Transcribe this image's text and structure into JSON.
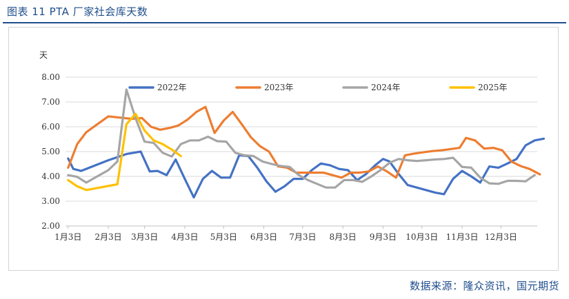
{
  "header": {
    "title": "图表 11 PTA 厂家社会库天数"
  },
  "footer": {
    "source": "数据来源：隆众资讯，国元期货"
  },
  "chart_data": {
    "type": "line",
    "title": "",
    "xlabel": "",
    "ylabel": "天",
    "ylim": [
      2.0,
      8.0
    ],
    "yticks": [
      "2.00",
      "3.00",
      "4.00",
      "5.00",
      "6.00",
      "7.00",
      "8.00"
    ],
    "xlim": [
      1,
      365
    ],
    "xticks": [
      {
        "label": "1月3日",
        "day": 3
      },
      {
        "label": "2月3日",
        "day": 34
      },
      {
        "label": "3月3日",
        "day": 62
      },
      {
        "label": "4月3日",
        "day": 93
      },
      {
        "label": "5月3日",
        "day": 123
      },
      {
        "label": "6月3日",
        "day": 154
      },
      {
        "label": "7月3日",
        "day": 184
      },
      {
        "label": "8月3日",
        "day": 215
      },
      {
        "label": "9月3日",
        "day": 246
      },
      {
        "label": "10月3日",
        "day": 276
      },
      {
        "label": "11月3日",
        "day": 307
      },
      {
        "label": "12月3日",
        "day": 337
      }
    ],
    "grid": true,
    "legend_position": "top",
    "series": [
      {
        "name": "2022年",
        "color": "#4472c4",
        "points": [
          [
            3,
            4.72
          ],
          [
            7,
            4.3
          ],
          [
            13,
            4.22
          ],
          [
            34,
            4.65
          ],
          [
            48,
            4.9
          ],
          [
            59,
            5.0
          ],
          [
            66,
            4.2
          ],
          [
            72,
            4.22
          ],
          [
            79,
            4.05
          ],
          [
            86,
            4.68
          ],
          [
            93,
            3.9
          ],
          [
            100,
            3.15
          ],
          [
            107,
            3.9
          ],
          [
            114,
            4.22
          ],
          [
            121,
            3.95
          ],
          [
            128,
            3.95
          ],
          [
            135,
            4.85
          ],
          [
            142,
            4.82
          ],
          [
            149,
            4.35
          ],
          [
            156,
            3.8
          ],
          [
            163,
            3.38
          ],
          [
            170,
            3.6
          ],
          [
            177,
            3.9
          ],
          [
            184,
            3.9
          ],
          [
            191,
            4.25
          ],
          [
            198,
            4.52
          ],
          [
            205,
            4.45
          ],
          [
            212,
            4.3
          ],
          [
            219,
            4.25
          ],
          [
            226,
            3.85
          ],
          [
            233,
            4.1
          ],
          [
            240,
            4.45
          ],
          [
            246,
            4.7
          ],
          [
            251,
            4.6
          ],
          [
            258,
            4.1
          ],
          [
            265,
            3.65
          ],
          [
            272,
            3.55
          ],
          [
            279,
            3.45
          ],
          [
            286,
            3.35
          ],
          [
            293,
            3.28
          ],
          [
            300,
            3.9
          ],
          [
            307,
            4.22
          ],
          [
            314,
            4.0
          ],
          [
            321,
            3.75
          ],
          [
            328,
            4.4
          ],
          [
            335,
            4.35
          ],
          [
            342,
            4.52
          ],
          [
            349,
            4.7
          ],
          [
            356,
            5.25
          ],
          [
            363,
            5.45
          ],
          [
            370,
            5.52
          ]
        ]
      },
      {
        "name": "2023年",
        "color": "#ed7d31",
        "points": [
          [
            3,
            4.35
          ],
          [
            10,
            5.3
          ],
          [
            17,
            5.78
          ],
          [
            34,
            6.42
          ],
          [
            41,
            6.38
          ],
          [
            52,
            6.32
          ],
          [
            60,
            6.35
          ],
          [
            67,
            6.0
          ],
          [
            74,
            5.88
          ],
          [
            81,
            5.95
          ],
          [
            88,
            6.05
          ],
          [
            95,
            6.28
          ],
          [
            102,
            6.6
          ],
          [
            109,
            6.8
          ],
          [
            116,
            5.75
          ],
          [
            123,
            6.25
          ],
          [
            130,
            6.6
          ],
          [
            137,
            6.1
          ],
          [
            144,
            5.58
          ],
          [
            151,
            5.22
          ],
          [
            158,
            5.0
          ],
          [
            165,
            4.4
          ],
          [
            172,
            4.35
          ],
          [
            179,
            4.15
          ],
          [
            186,
            4.15
          ],
          [
            193,
            4.15
          ],
          [
            200,
            4.15
          ],
          [
            207,
            4.05
          ],
          [
            214,
            3.95
          ],
          [
            221,
            4.15
          ],
          [
            228,
            4.15
          ],
          [
            235,
            4.2
          ],
          [
            242,
            4.4
          ],
          [
            249,
            4.2
          ],
          [
            256,
            3.95
          ],
          [
            263,
            4.85
          ],
          [
            270,
            4.92
          ],
          [
            277,
            4.97
          ],
          [
            284,
            5.02
          ],
          [
            291,
            5.05
          ],
          [
            298,
            5.1
          ],
          [
            305,
            5.15
          ],
          [
            310,
            5.55
          ],
          [
            317,
            5.45
          ],
          [
            324,
            5.12
          ],
          [
            331,
            5.15
          ],
          [
            338,
            5.05
          ],
          [
            345,
            4.6
          ],
          [
            352,
            4.42
          ],
          [
            359,
            4.3
          ],
          [
            367,
            4.08
          ]
        ]
      },
      {
        "name": "2024年",
        "color": "#a5a5a5",
        "points": [
          [
            3,
            4.05
          ],
          [
            10,
            3.98
          ],
          [
            17,
            3.75
          ],
          [
            34,
            4.25
          ],
          [
            41,
            4.6
          ],
          [
            48,
            7.5
          ],
          [
            55,
            6.35
          ],
          [
            62,
            5.4
          ],
          [
            69,
            5.35
          ],
          [
            76,
            4.95
          ],
          [
            83,
            4.8
          ],
          [
            90,
            5.3
          ],
          [
            97,
            5.45
          ],
          [
            104,
            5.45
          ],
          [
            111,
            5.6
          ],
          [
            118,
            5.42
          ],
          [
            125,
            5.4
          ],
          [
            132,
            4.95
          ],
          [
            139,
            4.85
          ],
          [
            146,
            4.82
          ],
          [
            153,
            4.6
          ],
          [
            160,
            4.5
          ],
          [
            167,
            4.42
          ],
          [
            174,
            4.38
          ],
          [
            181,
            4.05
          ],
          [
            188,
            3.85
          ],
          [
            195,
            3.7
          ],
          [
            202,
            3.55
          ],
          [
            209,
            3.55
          ],
          [
            216,
            3.85
          ],
          [
            223,
            3.85
          ],
          [
            230,
            3.78
          ],
          [
            237,
            4.0
          ],
          [
            244,
            4.25
          ],
          [
            251,
            4.55
          ],
          [
            258,
            4.7
          ],
          [
            265,
            4.65
          ],
          [
            272,
            4.62
          ],
          [
            279,
            4.65
          ],
          [
            286,
            4.68
          ],
          [
            293,
            4.7
          ],
          [
            300,
            4.75
          ],
          [
            307,
            4.38
          ],
          [
            314,
            4.35
          ],
          [
            321,
            3.95
          ],
          [
            328,
            3.72
          ],
          [
            335,
            3.7
          ],
          [
            342,
            3.82
          ],
          [
            349,
            3.82
          ],
          [
            356,
            3.8
          ],
          [
            363,
            4.05
          ]
        ]
      },
      {
        "name": "2025年",
        "color": "#ffc000",
        "points": [
          [
            3,
            3.85
          ],
          [
            10,
            3.6
          ],
          [
            17,
            3.45
          ],
          [
            41,
            3.68
          ],
          [
            48,
            6.1
          ],
          [
            55,
            6.52
          ],
          [
            62,
            5.85
          ],
          [
            69,
            5.45
          ],
          [
            76,
            5.3
          ],
          [
            83,
            5.08
          ],
          [
            90,
            4.82
          ]
        ]
      }
    ]
  }
}
